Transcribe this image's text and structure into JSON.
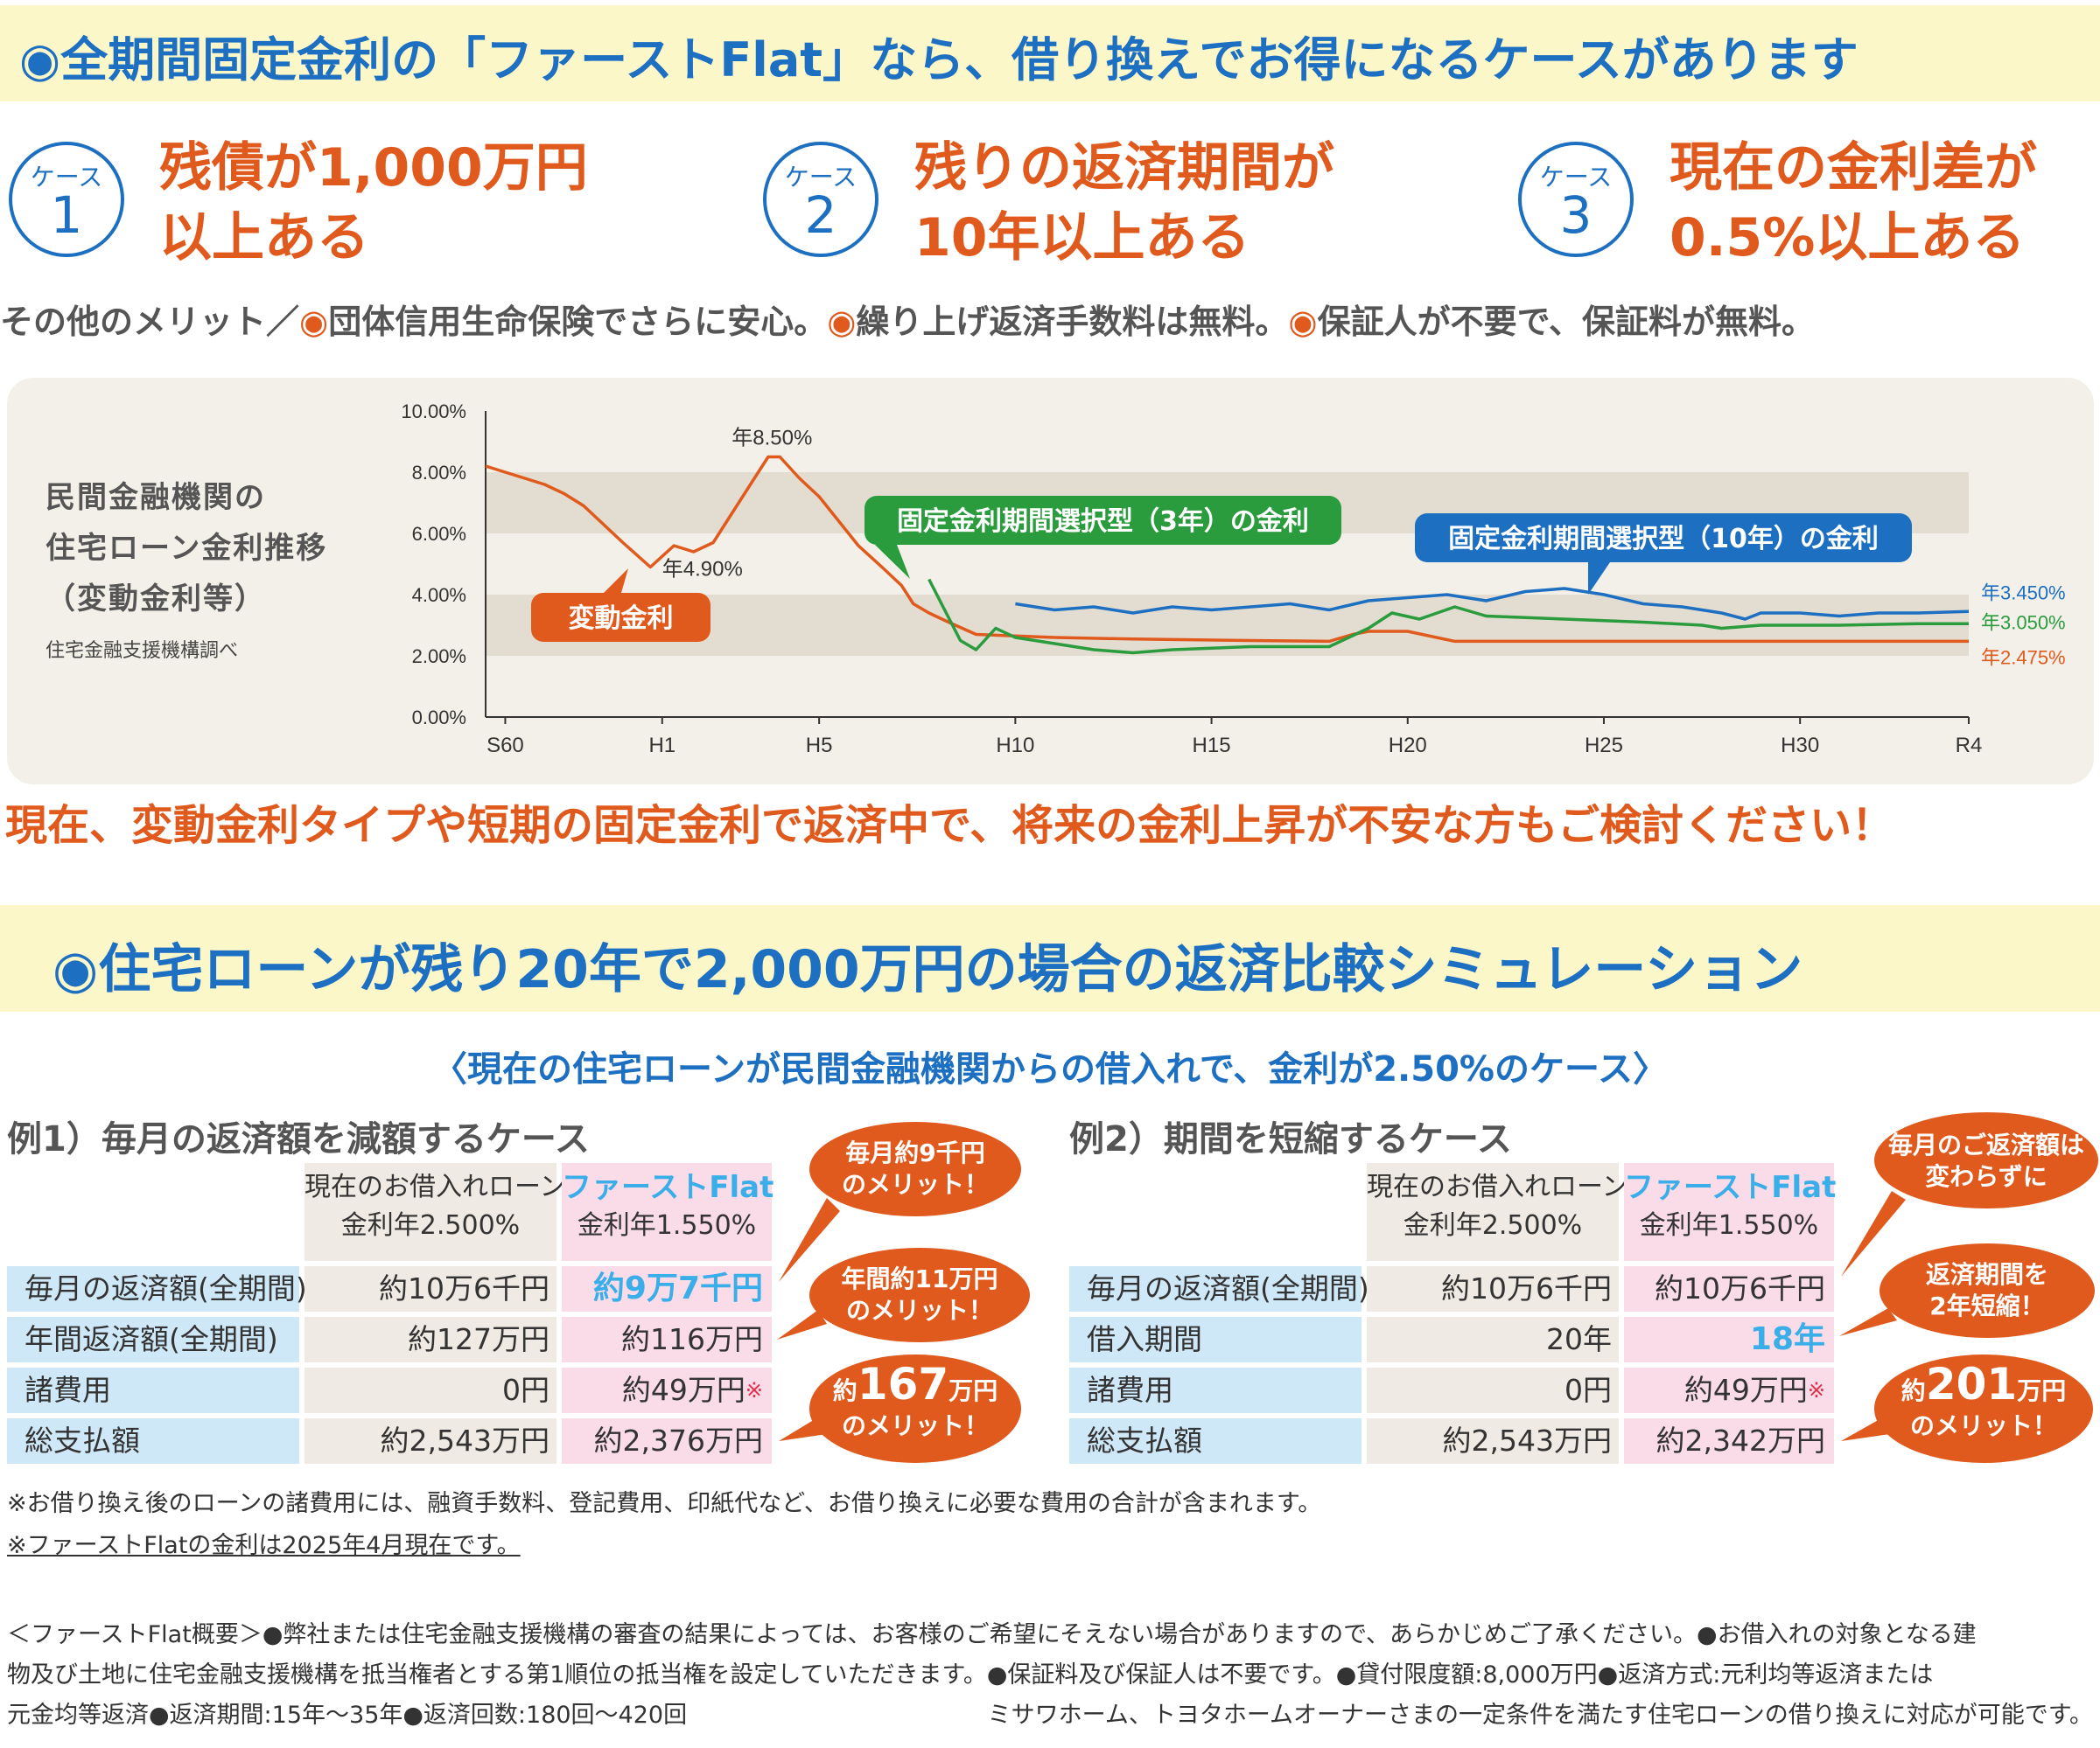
{
  "header1": {
    "title": "◉全期間固定金利の「ファーストFlat」なら、借り換えでお得になるケースがあります"
  },
  "cases": [
    {
      "label": "ケース",
      "number": "1",
      "line1": "残債が1,000万円",
      "line2": "以上ある"
    },
    {
      "label": "ケース",
      "number": "2",
      "line1": "残りの返済期間が",
      "line2": "10年以上ある"
    },
    {
      "label": "ケース",
      "number": "3",
      "line1": "現在の金利差が",
      "line2": "0.5%以上ある"
    }
  ],
  "merits": {
    "prefix": "その他のメリット／",
    "dot": "◉",
    "m1": "団体信用生命保険でさらに安心。",
    "m2": "繰り上げ返済手数料は無料。",
    "m3": "保証人が不要で、保証料が無料。"
  },
  "chart_side": {
    "line1": "民間金融機関の",
    "line2": "住宅ローン金利推移",
    "line3": "（変動金利等）",
    "source": "住宅金融支援機構調べ"
  },
  "chart_data": {
    "type": "line",
    "xlabel": "",
    "ylabel": "",
    "ylim": [
      0,
      10
    ],
    "x_ticks": [
      "S60",
      "H1",
      "H5",
      "H10",
      "H15",
      "H20",
      "H25",
      "H30",
      "R4"
    ],
    "y_ticks": [
      "0.00%",
      "2.00%",
      "4.00%",
      "6.00%",
      "8.00%",
      "10.00%"
    ],
    "colors": {
      "variable": "#e05a1d",
      "fixed3": "#2a9c3e",
      "fixed10": "#1d6fc1"
    },
    "series": [
      {
        "name": "変動金利",
        "x": [
          1984.5,
          1985,
          1986,
          1986.5,
          1987,
          1987.5,
          1988,
          1988.7,
          1989.3,
          1989.8,
          1990.3,
          1990.7,
          1991.3,
          1991.7,
          1992,
          1992.5,
          1993,
          1993.5,
          1994,
          1994.6,
          1995.1,
          1995.4,
          1995.8,
          1996.3,
          1997,
          1998,
          1999,
          2001,
          2004,
          2006,
          2006.6,
          2007,
          2008,
          2009.2,
          2011,
          2013,
          2016,
          2020,
          2022.3
        ],
        "y": [
          8.2,
          8.0,
          7.6,
          7.3,
          6.9,
          6.3,
          5.7,
          4.9,
          5.6,
          5.4,
          5.7,
          6.5,
          7.7,
          8.5,
          8.5,
          7.8,
          7.2,
          6.4,
          5.6,
          4.9,
          4.3,
          3.7,
          3.4,
          3.1,
          2.7,
          2.65,
          2.6,
          2.55,
          2.5,
          2.475,
          2.7,
          2.8,
          2.8,
          2.475,
          2.475,
          2.475,
          2.475,
          2.475,
          2.475
        ]
      },
      {
        "name": "固定金利期間選択型（3年）の金利",
        "x": [
          1995.8,
          1996.2,
          1996.6,
          1997.0,
          1997.5,
          1998.0,
          1999.0,
          2000.0,
          2001.0,
          2002.0,
          2004.0,
          2006.0,
          2007.0,
          2007.6,
          2008.3,
          2009.2,
          2010.0,
          2012.0,
          2014.0,
          2015.5,
          2016.0,
          2017.0,
          2019.0,
          2021.0,
          2022.3
        ],
        "y": [
          4.5,
          3.5,
          2.5,
          2.2,
          2.9,
          2.6,
          2.4,
          2.2,
          2.1,
          2.2,
          2.3,
          2.3,
          2.9,
          3.4,
          3.2,
          3.6,
          3.3,
          3.2,
          3.1,
          3.0,
          2.9,
          3.0,
          3.0,
          3.05,
          3.05
        ]
      },
      {
        "name": "固定金利期間選択型（10年）の金利",
        "x": [
          1998.0,
          1999.0,
          2000.0,
          2001.0,
          2002.0,
          2003.0,
          2004.0,
          2005.0,
          2006.0,
          2007.0,
          2008.0,
          2009.0,
          2010.0,
          2011.0,
          2012.0,
          2013.0,
          2014.0,
          2015.0,
          2016.0,
          2016.6,
          2017.0,
          2018.0,
          2019.0,
          2020.0,
          2021.0,
          2022.3
        ],
        "y": [
          3.7,
          3.5,
          3.6,
          3.4,
          3.6,
          3.5,
          3.6,
          3.7,
          3.5,
          3.8,
          3.9,
          4.0,
          3.8,
          4.1,
          4.2,
          4.0,
          3.7,
          3.6,
          3.4,
          3.2,
          3.4,
          3.4,
          3.3,
          3.4,
          3.4,
          3.45
        ]
      }
    ],
    "annotations": {
      "peak": "年8.50%",
      "low": "年4.90%",
      "end_fixed10": "年3.450%",
      "end_fixed3": "年3.050%",
      "end_variable": "年2.475%",
      "callout_variable": "変動金利",
      "callout_fixed3": "固定金利期間選択型（3年）の金利",
      "callout_fixed10": "固定金利期間選択型（10年）の金利"
    },
    "bands": [
      [
        2,
        4
      ],
      [
        6,
        8
      ]
    ]
  },
  "warning": "現在、変動金利タイプや短期の固定金利で返済中で、将来の金利上昇が不安な方もご検討ください！",
  "header2": {
    "title": "◉住宅ローンが残り20年で2,000万円の場合の返済比較シミュレーション"
  },
  "subtitle": "〈現在の住宅ローンが民間金融機関からの借入れで、金利が2.50%のケース〉",
  "example1": {
    "title": "例1）毎月の返済額を減額するケース",
    "head_current_1": "現在のお借入れローン",
    "head_current_2": "金利年2.500%",
    "head_ff_1": "ファーストFlat",
    "head_ff_2": "金利年1.550%",
    "rows": [
      {
        "label": "毎月の返済額(全期間)",
        "current": "約10万6千円",
        "ff": "約9万7千円"
      },
      {
        "label": "年間返済額(全期間)",
        "current": "約127万円",
        "ff": "約116万円"
      },
      {
        "label": "諸費用",
        "current": "0円",
        "ff": "約49万円",
        "mark": "※"
      },
      {
        "label": "総支払額",
        "current": "約2,543万円",
        "ff": "約2,376万円"
      }
    ],
    "bubble1_l1": "毎月約9千円",
    "bubble1_l2": "のメリット！",
    "bubble2_l1": "年間約11万円",
    "bubble2_l2": "のメリット！",
    "bubble3_pre": "約",
    "bubble3_num": "167",
    "bubble3_unit": "万円",
    "bubble3_l2": "のメリット！"
  },
  "example2": {
    "title": "例2）期間を短縮するケース",
    "head_current_1": "現在のお借入れローン",
    "head_current_2": "金利年2.500%",
    "head_ff_1": "ファーストFlat",
    "head_ff_2": "金利年1.550%",
    "rows": [
      {
        "label": "毎月の返済額(全期間)",
        "current": "約10万6千円",
        "ff": "約10万6千円"
      },
      {
        "label": "借入期間",
        "current": "20年",
        "ff": "18年"
      },
      {
        "label": "諸費用",
        "current": "0円",
        "ff": "約49万円",
        "mark": "※"
      },
      {
        "label": "総支払額",
        "current": "約2,543万円",
        "ff": "約2,342万円"
      }
    ],
    "bubble1_l1": "毎月のご返済額は",
    "bubble1_l2": "変わらずに",
    "bubble2_l1": "返済期間を",
    "bubble2_l2": "2年短縮！",
    "bubble3_pre": "約",
    "bubble3_num": "201",
    "bubble3_unit": "万円",
    "bubble3_l2": "のメリット！"
  },
  "notes": {
    "n1": "※お借り換え後のローンの諸費用には、融資手数料、登記費用、印紙代など、お借り換えに必要な費用の合計が含まれます。",
    "n2": "※ファーストFlatの金利は2025年4月現在です。"
  },
  "footer": {
    "l1": "＜ファーストFlat概要＞●弊社または住宅金融支援機構の審査の結果によっては、お客様のご希望にそえない場合がありますので、あらかじめご了承ください。●お借入れの対象となる建",
    "l2": "物及び土地に住宅金融支援機構を抵当権者とする第1順位の抵当権を設定していただきます。●保証料及び保証人は不要です。●貸付限度額:8,000万円●返済方式:元利均等返済または",
    "l3a": "元金均等返済●返済期間:15年〜35年●返済回数:180回〜420回",
    "l3b": "ミサワホーム、トヨタホームオーナーさまの一定条件を満たす住宅ローンの借り換えに対応が可能です。"
  }
}
